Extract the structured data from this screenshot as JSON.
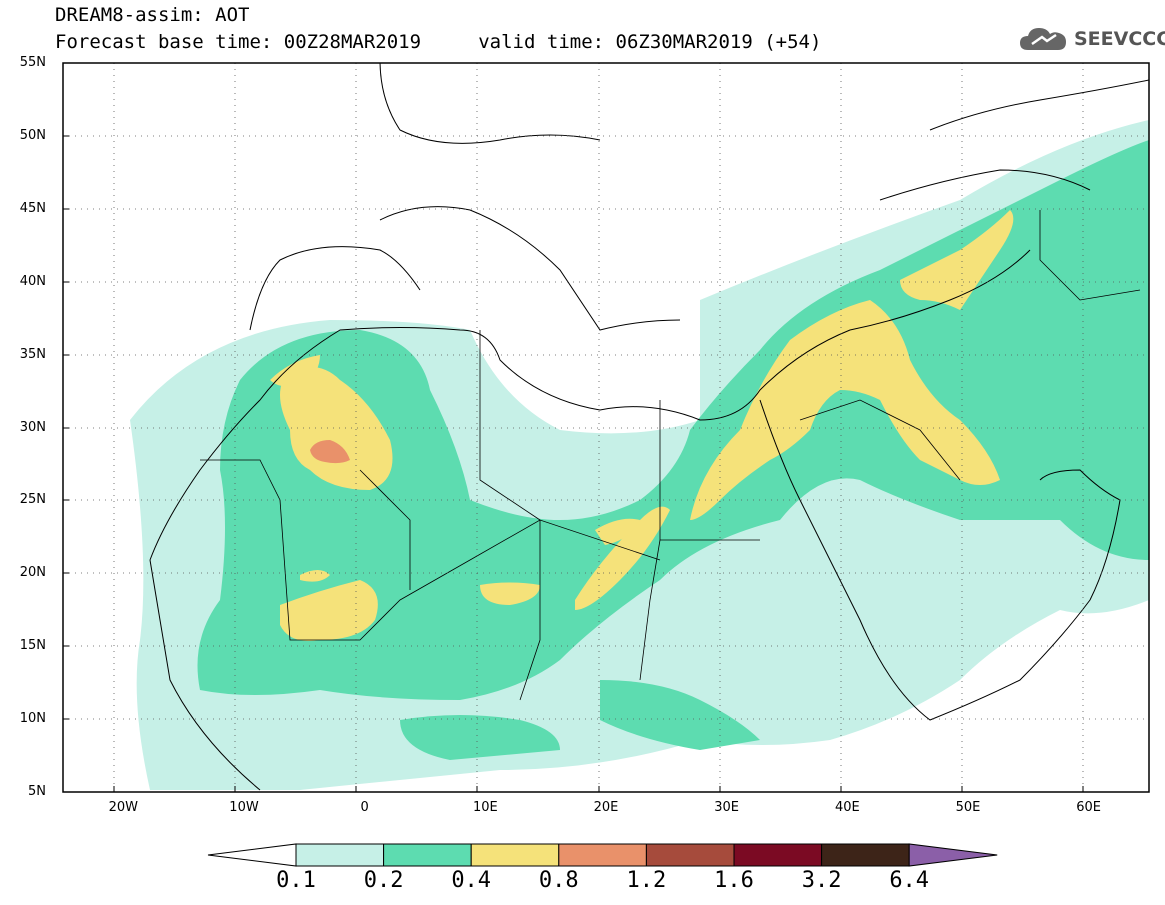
{
  "title": {
    "line1": "DREAM8-assim: AOT",
    "line2": "Forecast base time: 00Z28MAR2019     valid time: 06Z30MAR2019 (+54)"
  },
  "logo": {
    "text": "SEEVCCC",
    "icon": "cloud-logo-icon"
  },
  "map": {
    "lat_labels": [
      "55N",
      "50N",
      "45N",
      "40N",
      "35N",
      "30N",
      "25N",
      "20N",
      "15N",
      "10N",
      "5N"
    ],
    "lon_labels": [
      "20W",
      "10W",
      "0",
      "10E",
      "20E",
      "30E",
      "40E",
      "50E",
      "60E"
    ],
    "lon_range": [
      -25,
      65
    ],
    "lat_range": [
      5,
      55
    ],
    "grid": "dotted"
  },
  "colorbar": {
    "labels": [
      "0.1",
      "0.2",
      "0.4",
      "0.8",
      "1.2",
      "1.6",
      "3.2",
      "6.4"
    ],
    "colors": [
      "#ffffff",
      "#c6f0e7",
      "#5ddcb0",
      "#f5e27a",
      "#e9916a",
      "#a64b3c",
      "#7b0a23",
      "#3d2418",
      "#8b5fa8"
    ]
  }
}
